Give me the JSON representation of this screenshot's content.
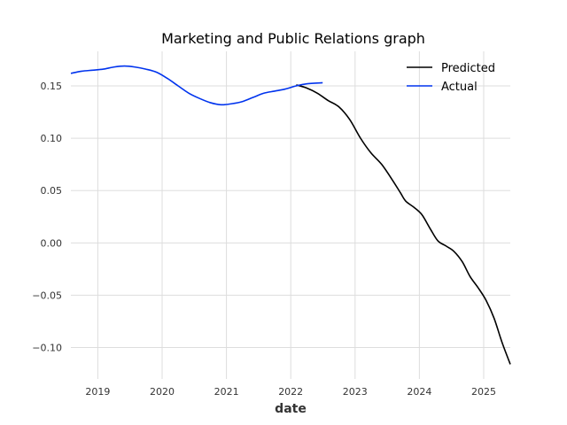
{
  "chart_data": {
    "type": "line",
    "title": "Marketing and Public Relations graph",
    "xlabel": "date",
    "ylabel": "",
    "xlim": [
      "2018-08-01",
      "2025-06-01"
    ],
    "ylim": [
      -0.13,
      0.183
    ],
    "x_ticks": [
      "2019",
      "2020",
      "2021",
      "2022",
      "2023",
      "2024",
      "2025"
    ],
    "y_ticks": [
      0.15,
      0.1,
      0.05,
      0.0,
      -0.05,
      -0.1
    ],
    "y_tick_labels": [
      "0.15",
      "0.10",
      "0.05",
      "0.00",
      "−0.05",
      "−0.10"
    ],
    "grid": true,
    "legend_position": "top-right",
    "series": [
      {
        "name": "Predicted",
        "color": "#000000",
        "points": [
          [
            "2022-02-01",
            0.151
          ],
          [
            "2022-04-01",
            0.148
          ],
          [
            "2022-06-01",
            0.143
          ],
          [
            "2022-08-01",
            0.136
          ],
          [
            "2022-10-01",
            0.13
          ],
          [
            "2022-12-01",
            0.118
          ],
          [
            "2023-02-01",
            0.1
          ],
          [
            "2023-04-01",
            0.086
          ],
          [
            "2023-06-01",
            0.075
          ],
          [
            "2023-08-01",
            0.06
          ],
          [
            "2023-09-15",
            0.048
          ],
          [
            "2023-10-15",
            0.04
          ],
          [
            "2023-12-01",
            0.034
          ],
          [
            "2024-01-15",
            0.027
          ],
          [
            "2024-03-01",
            0.014
          ],
          [
            "2024-04-15",
            0.002
          ],
          [
            "2024-06-01",
            -0.003
          ],
          [
            "2024-07-15",
            -0.008
          ],
          [
            "2024-09-01",
            -0.018
          ],
          [
            "2024-10-15",
            -0.032
          ],
          [
            "2024-12-01",
            -0.043
          ],
          [
            "2025-01-15",
            -0.055
          ],
          [
            "2025-03-01",
            -0.072
          ],
          [
            "2025-04-15",
            -0.095
          ],
          [
            "2025-06-01",
            -0.116
          ]
        ]
      },
      {
        "name": "Actual",
        "color": "#0033ee",
        "points": [
          [
            "2018-08-01",
            0.162
          ],
          [
            "2018-10-01",
            0.164
          ],
          [
            "2018-12-01",
            0.165
          ],
          [
            "2019-02-01",
            0.166
          ],
          [
            "2019-04-01",
            0.168
          ],
          [
            "2019-06-01",
            0.169
          ],
          [
            "2019-08-01",
            0.168
          ],
          [
            "2019-10-01",
            0.166
          ],
          [
            "2019-12-01",
            0.163
          ],
          [
            "2020-02-01",
            0.157
          ],
          [
            "2020-04-01",
            0.15
          ],
          [
            "2020-06-01",
            0.143
          ],
          [
            "2020-08-01",
            0.138
          ],
          [
            "2020-10-01",
            0.134
          ],
          [
            "2020-12-01",
            0.132
          ],
          [
            "2021-02-01",
            0.133
          ],
          [
            "2021-04-01",
            0.135
          ],
          [
            "2021-06-01",
            0.139
          ],
          [
            "2021-08-01",
            0.143
          ],
          [
            "2021-10-01",
            0.145
          ],
          [
            "2021-12-01",
            0.147
          ],
          [
            "2022-02-01",
            0.15
          ],
          [
            "2022-04-01",
            0.152
          ],
          [
            "2022-07-01",
            0.153
          ]
        ]
      }
    ]
  }
}
